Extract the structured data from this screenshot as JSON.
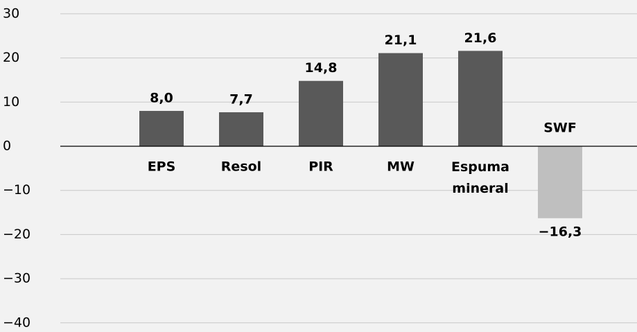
{
  "chart_data": {
    "type": "bar",
    "categories": [
      null,
      "EPS",
      "Resol",
      "PIR",
      "MW",
      "Espuma mineral",
      "SWF"
    ],
    "values": [
      null,
      8.0,
      7.7,
      14.8,
      21.1,
      21.6,
      -16.3
    ],
    "value_labels": [
      null,
      "8,0",
      "7,7",
      "14,8",
      "21,1",
      "21,6",
      "−16,3"
    ],
    "colors": [
      null,
      "#595959",
      "#595959",
      "#595959",
      "#595959",
      "#595959",
      "#bfbfbf"
    ],
    "ylim": [
      -40,
      30
    ],
    "yticks": [
      30,
      20,
      10,
      0,
      {
        "value": -10,
        "label": "−10"
      },
      {
        "value": -20,
        "label": "−20"
      },
      {
        "value": -30,
        "label": "−30"
      },
      {
        "value": -40,
        "label": "−40"
      }
    ],
    "grid": true
  }
}
